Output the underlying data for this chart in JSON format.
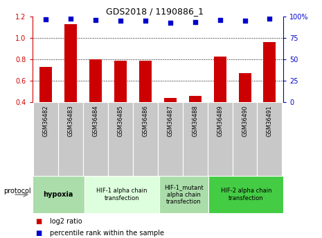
{
  "title": "GDS2018 / 1190886_1",
  "samples": [
    "GSM36482",
    "GSM36483",
    "GSM36484",
    "GSM36485",
    "GSM36486",
    "GSM36487",
    "GSM36488",
    "GSM36489",
    "GSM36490",
    "GSM36491"
  ],
  "log2_ratio": [
    0.73,
    1.13,
    0.8,
    0.79,
    0.79,
    0.44,
    0.46,
    0.83,
    0.67,
    0.96
  ],
  "percentile_rank": [
    97,
    98,
    96,
    95,
    95,
    93,
    94,
    96,
    95,
    98
  ],
  "bar_color": "#cc0000",
  "dot_color": "#0000cc",
  "ylim_left": [
    0.4,
    1.2
  ],
  "ylim_right": [
    0,
    100
  ],
  "yticks_left": [
    0.4,
    0.6,
    0.8,
    1.0,
    1.2
  ],
  "yticks_right": [
    0,
    25,
    50,
    75,
    100
  ],
  "ytick_right_labels": [
    "0",
    "25",
    "50",
    "75",
    "100%"
  ],
  "dotted_lines": [
    0.6,
    0.8,
    1.0
  ],
  "protocols": [
    {
      "label": "hypoxia",
      "start": 0,
      "end": 1,
      "color": "#aaddaa",
      "bold": true
    },
    {
      "label": "HIF-1 alpha chain\ntransfection",
      "start": 2,
      "end": 4,
      "color": "#ddffdd",
      "bold": false
    },
    {
      "label": "HIF-1_mutant\nalpha chain\ntransfection",
      "start": 5,
      "end": 6,
      "color": "#aaddaa",
      "bold": false
    },
    {
      "label": "HIF-2 alpha chain\ntransfection",
      "start": 7,
      "end": 9,
      "color": "#44bb44",
      "bold": false
    }
  ],
  "protocol_label": "protocol",
  "legend_items": [
    {
      "color": "#cc0000",
      "label": "log2 ratio"
    },
    {
      "color": "#0000cc",
      "label": "percentile rank within the sample"
    }
  ],
  "left_color": "#cc0000",
  "right_color": "#0000cc",
  "tick_bg_color": "#c8c8c8",
  "bar_width": 0.5,
  "dot_size": 20
}
